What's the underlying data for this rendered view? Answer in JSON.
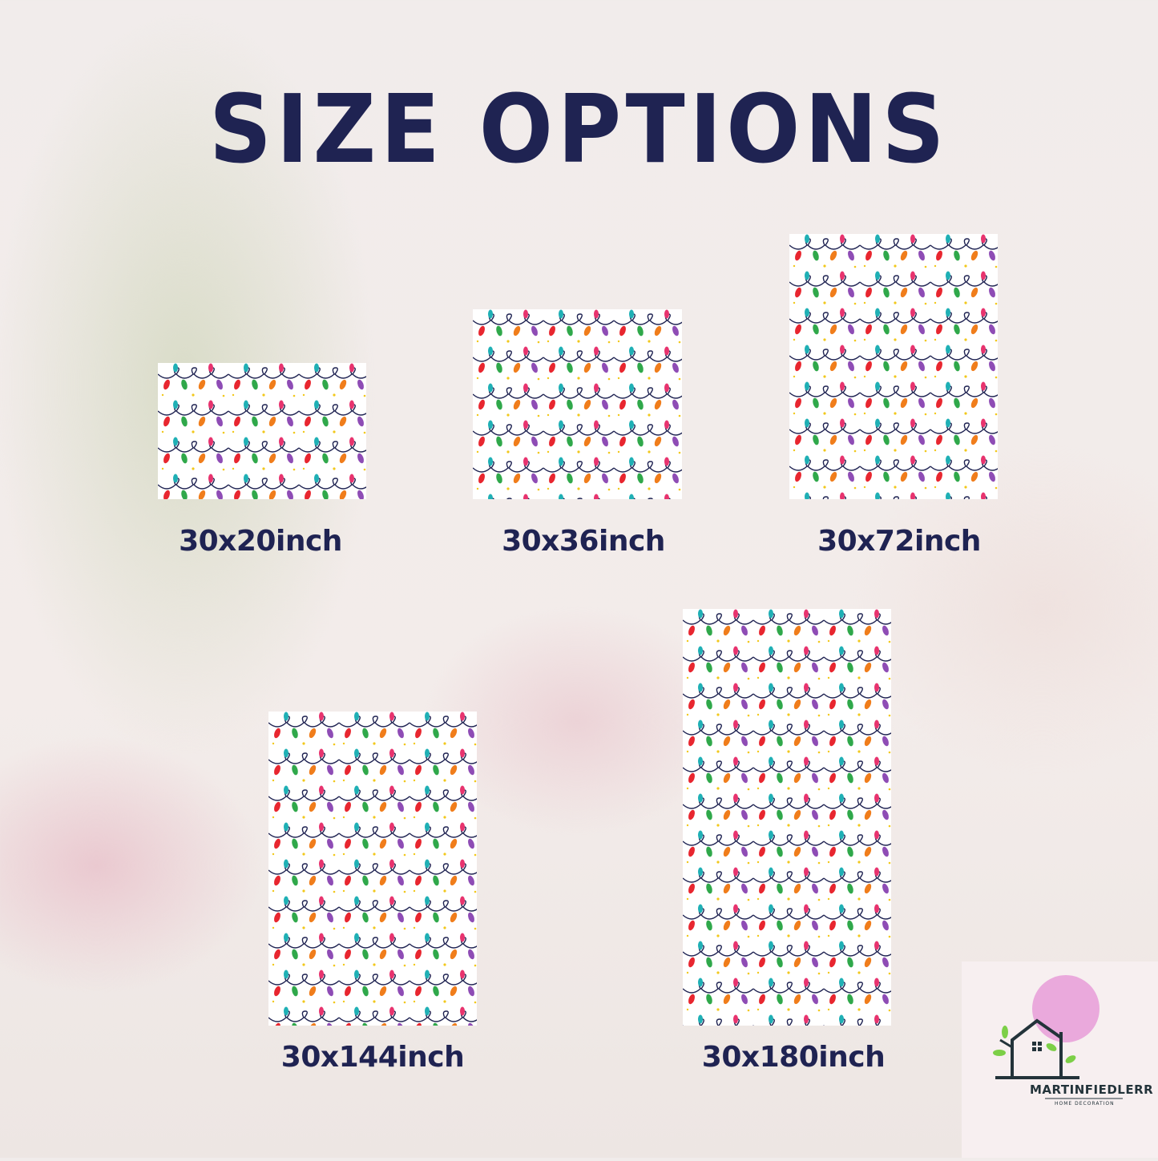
{
  "title": "SIZE OPTIONS",
  "sizes": [
    {
      "label": "30x20inch"
    },
    {
      "label": "30x36inch"
    },
    {
      "label": "30x72inch"
    },
    {
      "label": "30x144inch"
    },
    {
      "label": "30x180inch"
    }
  ],
  "brand": {
    "name": "MARTINFIEDLERR",
    "tagline": "HOME DECORATION"
  },
  "colors": {
    "text": "#1f2352",
    "bulbs": [
      "#e8262f",
      "#f07d1b",
      "#2fa84a",
      "#1fb0b5",
      "#8e4cb5",
      "#e8336e",
      "#8cc63f"
    ],
    "wire": "#1f2352",
    "stars": "#f2c81b"
  }
}
